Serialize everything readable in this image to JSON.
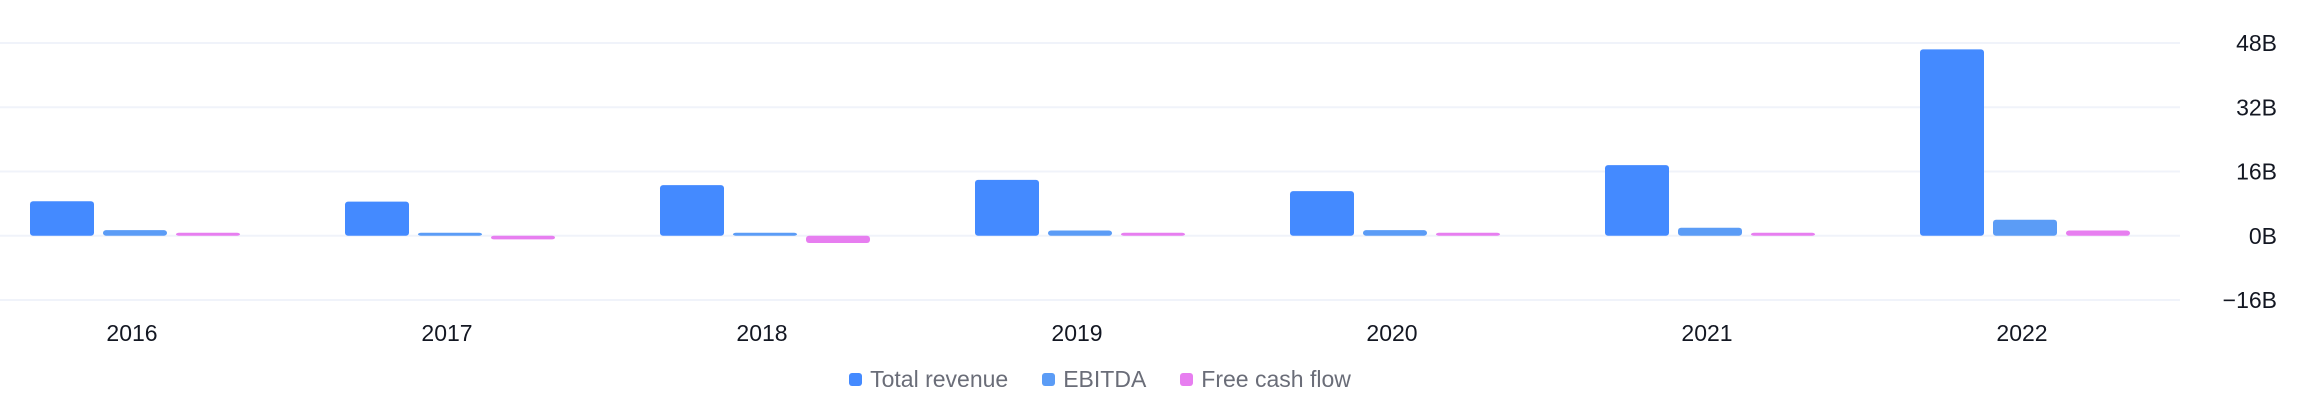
{
  "chart_data": {
    "type": "bar",
    "categories": [
      "2016",
      "2017",
      "2018",
      "2019",
      "2020",
      "2021",
      "2022"
    ],
    "series": [
      {
        "name": "Total revenue",
        "color": "#448aff",
        "values": [
          8.6,
          8.5,
          12.6,
          13.9,
          11.1,
          17.6,
          46.4
        ]
      },
      {
        "name": "EBITDA",
        "color": "#5b9cf6",
        "values": [
          1.4,
          0.6,
          0.7,
          1.3,
          1.4,
          2.0,
          4.0
        ]
      },
      {
        "name": "Free cash flow",
        "color": "#e77ef0",
        "values": [
          0.6,
          -0.9,
          -1.8,
          0.6,
          0.6,
          0.5,
          1.3
        ]
      }
    ],
    "y_axis": {
      "position": "right",
      "ylim": [
        -16,
        48
      ],
      "ticks": [
        48,
        32,
        16,
        0,
        -16
      ],
      "tick_labels": [
        "48B",
        "32B",
        "16B",
        "0B",
        "−16B"
      ]
    },
    "grid": true,
    "legend_position": "bottom-center",
    "title": "",
    "xlabel": "",
    "ylabel": ""
  }
}
